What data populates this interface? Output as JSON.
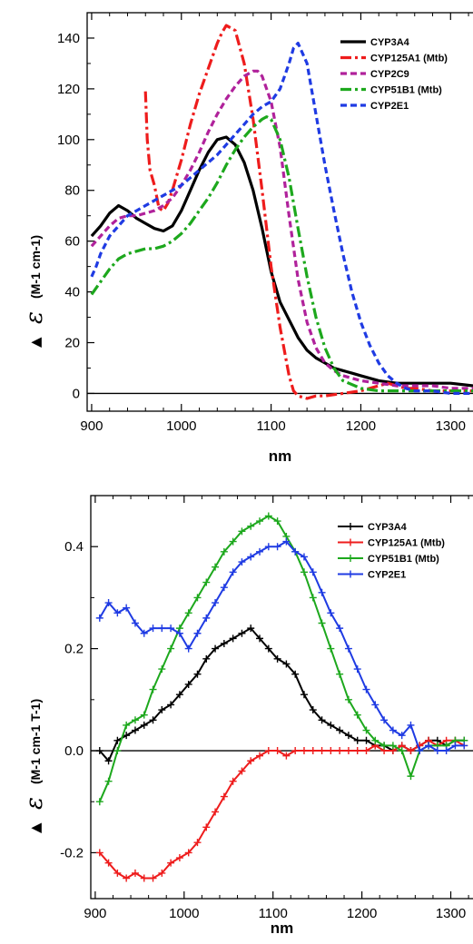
{
  "chart_data": [
    {
      "type": "line",
      "xlabel": "nm",
      "ylabel_symbol": "▲ ε",
      "ylabel_unit": "(M-1 cm-1)",
      "xlim": [
        895,
        1325
      ],
      "ylim": [
        -7,
        150
      ],
      "x_ticks": [
        "900",
        "1000",
        "1100",
        "1200",
        "1300"
      ],
      "x_tick_values": [
        900,
        1000,
        1100,
        1200,
        1300
      ],
      "y_ticks": [
        "0",
        "20",
        "40",
        "60",
        "80",
        "100",
        "120",
        "140"
      ],
      "y_tick_values": [
        0,
        20,
        40,
        60,
        80,
        100,
        120,
        140
      ],
      "zero_line": true,
      "grid": false,
      "legend_position": "top-right",
      "series": [
        {
          "name": "CYP3A4",
          "color": "#000000",
          "style": "solid",
          "x": [
            900,
            910,
            920,
            930,
            940,
            950,
            960,
            970,
            980,
            990,
            1000,
            1010,
            1020,
            1030,
            1040,
            1050,
            1060,
            1070,
            1080,
            1090,
            1100,
            1110,
            1120,
            1130,
            1140,
            1150,
            1160,
            1170,
            1180,
            1190,
            1200,
            1220,
            1240,
            1260,
            1280,
            1300,
            1325
          ],
          "y": [
            62,
            66,
            71,
            74,
            72,
            69,
            67,
            65,
            64,
            66,
            72,
            80,
            88,
            95,
            100,
            101,
            98,
            91,
            80,
            65,
            48,
            36,
            29,
            22,
            17,
            14,
            12,
            10,
            9,
            8,
            7,
            5,
            4,
            4,
            4,
            4,
            3
          ]
        },
        {
          "name": "CYP125A1 (Mtb)",
          "color": "#ee1c1c",
          "style": "dashdot",
          "x": [
            960,
            962,
            965,
            970,
            975,
            980,
            985,
            990,
            995,
            1000,
            1010,
            1020,
            1030,
            1040,
            1045,
            1050,
            1060,
            1070,
            1080,
            1090,
            1100,
            1110,
            1120,
            1125,
            1130,
            1140,
            1150,
            1160,
            1180,
            1200,
            1210,
            1220,
            1230,
            1240,
            1250,
            1260,
            1280,
            1300,
            1325
          ],
          "y": [
            119,
            100,
            88,
            82,
            73,
            72,
            75,
            80,
            86,
            92,
            106,
            118,
            128,
            138,
            142,
            145,
            143,
            130,
            108,
            80,
            50,
            26,
            7,
            1,
            -1,
            -2,
            -1,
            -1,
            0,
            1,
            2,
            3,
            4,
            3,
            2,
            2,
            1,
            1,
            1
          ]
        },
        {
          "name": "CYP2C9",
          "color": "#b0229b",
          "style": "dashed",
          "x": [
            900,
            910,
            920,
            930,
            940,
            950,
            960,
            970,
            980,
            990,
            1000,
            1010,
            1020,
            1030,
            1040,
            1050,
            1060,
            1070,
            1080,
            1085,
            1090,
            1100,
            1110,
            1120,
            1130,
            1140,
            1150,
            1160,
            1170,
            1180,
            1200,
            1220,
            1240,
            1260,
            1280,
            1300,
            1325
          ],
          "y": [
            58,
            62,
            66,
            69,
            70,
            70,
            71,
            72,
            74,
            77,
            82,
            88,
            95,
            103,
            110,
            116,
            121,
            125,
            127,
            127,
            125,
            115,
            97,
            70,
            45,
            28,
            18,
            12,
            9,
            7,
            5,
            4,
            3,
            3,
            3,
            2,
            2
          ]
        },
        {
          "name": "CYP51B1 (Mtb)",
          "color": "#1da81d",
          "style": "dashdot",
          "x": [
            900,
            910,
            920,
            930,
            940,
            950,
            960,
            970,
            980,
            990,
            1000,
            1010,
            1020,
            1030,
            1040,
            1050,
            1060,
            1070,
            1080,
            1090,
            1095,
            1100,
            1110,
            1120,
            1130,
            1140,
            1150,
            1160,
            1170,
            1180,
            1200,
            1220,
            1240,
            1260,
            1280,
            1300,
            1325
          ],
          "y": [
            39,
            44,
            49,
            53,
            55,
            56,
            57,
            57,
            58,
            60,
            63,
            67,
            72,
            77,
            83,
            90,
            96,
            101,
            105,
            108,
            109,
            108,
            100,
            85,
            65,
            46,
            30,
            18,
            10,
            5,
            2,
            1,
            1,
            1,
            1,
            1,
            1
          ]
        },
        {
          "name": "CYP2E1",
          "color": "#1f3be3",
          "style": "dashed",
          "x": [
            900,
            905,
            910,
            920,
            930,
            940,
            950,
            960,
            970,
            980,
            990,
            1000,
            1010,
            1020,
            1030,
            1040,
            1050,
            1060,
            1070,
            1080,
            1090,
            1100,
            1110,
            1120,
            1125,
            1130,
            1140,
            1150,
            1160,
            1170,
            1180,
            1190,
            1200,
            1210,
            1220,
            1230,
            1240,
            1250,
            1260,
            1280,
            1300,
            1325
          ],
          "y": [
            46,
            50,
            55,
            62,
            66,
            70,
            72,
            74,
            76,
            78,
            80,
            82,
            85,
            88,
            91,
            94,
            98,
            102,
            106,
            110,
            113,
            115,
            120,
            130,
            136,
            138,
            130,
            110,
            90,
            72,
            55,
            40,
            28,
            19,
            12,
            7,
            4,
            2,
            1,
            1,
            0,
            0
          ]
        }
      ]
    },
    {
      "type": "line",
      "xlabel": "nm",
      "ylabel_symbol": "▲ ε",
      "ylabel_unit": "(M-1 cm-1 T-1)",
      "xlim": [
        895,
        1325
      ],
      "ylim": [
        -0.29,
        0.5
      ],
      "x_ticks": [
        "900",
        "1000",
        "1100",
        "1200",
        "1300"
      ],
      "x_tick_values": [
        900,
        1000,
        1100,
        1200,
        1300
      ],
      "y_ticks": [
        "-0.2",
        "0.0",
        "0.2",
        "0.4"
      ],
      "y_tick_values": [
        -0.2,
        0.0,
        0.2,
        0.4
      ],
      "zero_line": true,
      "grid": false,
      "legend_position": "top-right",
      "series": [
        {
          "name": "CYP3A4",
          "color": "#000000",
          "marker": "plus",
          "x": [
            905,
            915,
            925,
            935,
            945,
            955,
            965,
            975,
            985,
            995,
            1005,
            1015,
            1025,
            1035,
            1045,
            1055,
            1065,
            1075,
            1085,
            1095,
            1105,
            1115,
            1125,
            1135,
            1145,
            1155,
            1165,
            1175,
            1185,
            1195,
            1205,
            1215,
            1225,
            1235,
            1245,
            1255,
            1265,
            1275,
            1285,
            1295,
            1305,
            1315
          ],
          "y": [
            0.0,
            -0.02,
            0.02,
            0.03,
            0.04,
            0.05,
            0.06,
            0.08,
            0.09,
            0.11,
            0.13,
            0.15,
            0.18,
            0.2,
            0.21,
            0.22,
            0.23,
            0.24,
            0.22,
            0.2,
            0.18,
            0.17,
            0.15,
            0.11,
            0.08,
            0.06,
            0.05,
            0.04,
            0.03,
            0.02,
            0.02,
            0.01,
            0.01,
            0.0,
            0.01,
            0.0,
            0.01,
            0.02,
            0.02,
            0.01,
            0.02,
            0.02
          ]
        },
        {
          "name": "CYP125A1 (Mtb)",
          "color": "#ee1c1c",
          "marker": "plus",
          "x": [
            905,
            915,
            925,
            935,
            945,
            955,
            965,
            975,
            985,
            995,
            1005,
            1015,
            1025,
            1035,
            1045,
            1055,
            1065,
            1075,
            1085,
            1095,
            1105,
            1115,
            1125,
            1135,
            1145,
            1155,
            1165,
            1175,
            1185,
            1195,
            1205,
            1215,
            1225,
            1235,
            1245,
            1255,
            1265,
            1275,
            1285,
            1295,
            1305,
            1315
          ],
          "y": [
            -0.2,
            -0.22,
            -0.24,
            -0.25,
            -0.24,
            -0.25,
            -0.25,
            -0.24,
            -0.22,
            -0.21,
            -0.2,
            -0.18,
            -0.15,
            -0.12,
            -0.09,
            -0.06,
            -0.04,
            -0.02,
            -0.01,
            0.0,
            0.0,
            -0.01,
            0.0,
            0.0,
            0.0,
            0.0,
            0.0,
            0.0,
            0.0,
            0.0,
            0.0,
            0.01,
            0.0,
            0.0,
            0.01,
            0.0,
            0.01,
            0.02,
            0.01,
            0.02,
            0.02,
            0.01
          ]
        },
        {
          "name": "CYP51B1 (Mtb)",
          "color": "#1da81d",
          "marker": "plus",
          "x": [
            905,
            915,
            925,
            935,
            945,
            955,
            965,
            975,
            985,
            995,
            1005,
            1015,
            1025,
            1035,
            1045,
            1055,
            1065,
            1075,
            1085,
            1095,
            1105,
            1115,
            1125,
            1135,
            1145,
            1155,
            1165,
            1175,
            1185,
            1195,
            1205,
            1215,
            1225,
            1235,
            1245,
            1255,
            1265,
            1275,
            1285,
            1295,
            1305,
            1315
          ],
          "y": [
            -0.1,
            -0.06,
            0.0,
            0.05,
            0.06,
            0.07,
            0.12,
            0.16,
            0.2,
            0.24,
            0.27,
            0.3,
            0.33,
            0.36,
            0.39,
            0.41,
            0.43,
            0.44,
            0.45,
            0.46,
            0.45,
            0.42,
            0.39,
            0.35,
            0.3,
            0.25,
            0.2,
            0.15,
            0.1,
            0.07,
            0.04,
            0.02,
            0.01,
            0.01,
            0.0,
            -0.05,
            0.0,
            0.01,
            0.01,
            0.01,
            0.02,
            0.02
          ]
        },
        {
          "name": "CYP2E1",
          "color": "#1f3be3",
          "marker": "plus",
          "x": [
            905,
            915,
            925,
            935,
            945,
            955,
            965,
            975,
            985,
            995,
            1005,
            1015,
            1025,
            1035,
            1045,
            1055,
            1065,
            1075,
            1085,
            1095,
            1105,
            1115,
            1125,
            1135,
            1145,
            1155,
            1165,
            1175,
            1185,
            1195,
            1205,
            1215,
            1225,
            1235,
            1245,
            1255,
            1265,
            1275,
            1285,
            1295,
            1305,
            1315
          ],
          "y": [
            0.26,
            0.29,
            0.27,
            0.28,
            0.25,
            0.23,
            0.24,
            0.24,
            0.24,
            0.23,
            0.2,
            0.23,
            0.26,
            0.29,
            0.32,
            0.35,
            0.37,
            0.38,
            0.39,
            0.4,
            0.4,
            0.41,
            0.39,
            0.38,
            0.35,
            0.31,
            0.27,
            0.24,
            0.2,
            0.16,
            0.12,
            0.09,
            0.06,
            0.04,
            0.03,
            0.05,
            0.0,
            0.01,
            0.0,
            0.0,
            0.01,
            0.01
          ]
        }
      ]
    }
  ]
}
